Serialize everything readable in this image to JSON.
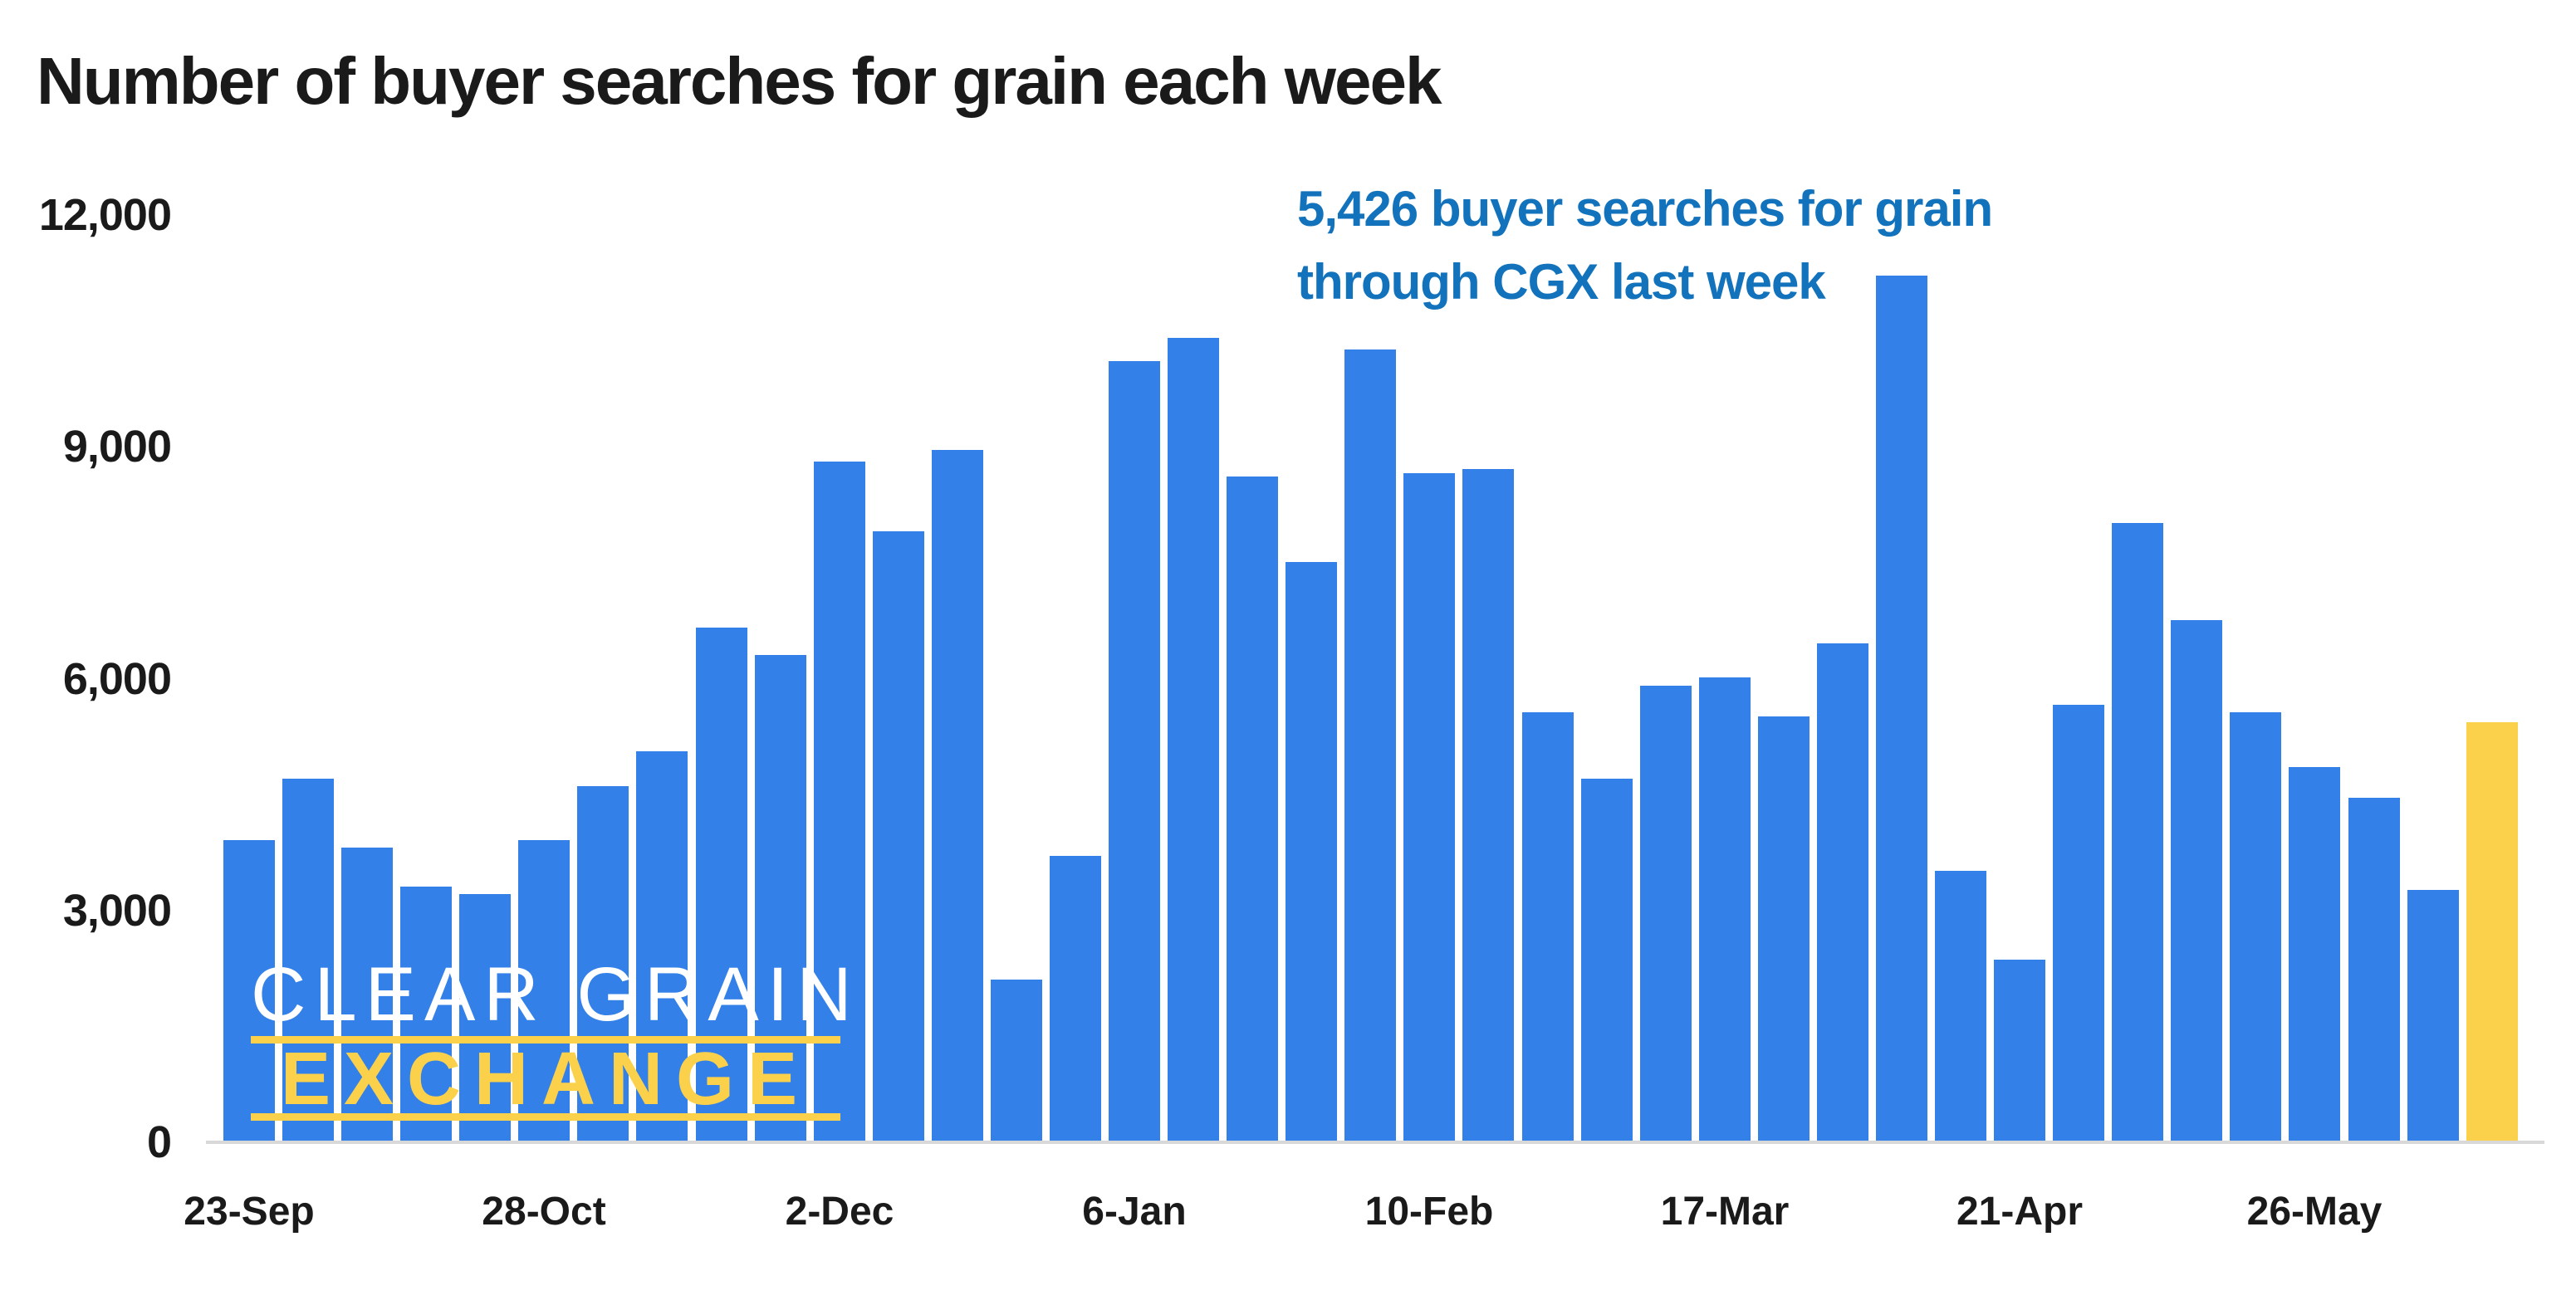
{
  "title": "Number of buyer searches for grain each week",
  "annotation": {
    "line1": "5,426 buyer searches for grain",
    "line2": "through CGX last week"
  },
  "logo": {
    "line1": "CLEAR GRAIN",
    "line2": "EXCHANGE"
  },
  "y_axis": {
    "labels": [
      "12,000",
      "9,000",
      "6,000",
      "3,000",
      "0"
    ]
  },
  "colors": {
    "bar_blue": "#3380E8",
    "highlight_yellow": "#FBD14B",
    "annotation_blue": "#1272BC",
    "text_dark": "#1a1a1a",
    "baseline_gray": "#d8d8d8"
  },
  "chart_data": {
    "type": "bar",
    "title": "Number of buyer searches for grain each week",
    "xlabel": "",
    "ylabel": "",
    "ylim": [
      0,
      12000
    ],
    "y_ticks": [
      0,
      3000,
      6000,
      9000,
      12000
    ],
    "y_tick_labels": [
      "0",
      "3,000",
      "6,000",
      "9,000",
      "12,000"
    ],
    "grid": false,
    "legend": false,
    "x_tick_labels": [
      {
        "index": 0,
        "label": "23-Sep"
      },
      {
        "index": 5,
        "label": "28-Oct"
      },
      {
        "index": 10,
        "label": "2-Dec"
      },
      {
        "index": 15,
        "label": "6-Jan"
      },
      {
        "index": 20,
        "label": "10-Feb"
      },
      {
        "index": 25,
        "label": "17-Mar"
      },
      {
        "index": 30,
        "label": "21-Apr"
      },
      {
        "index": 35,
        "label": "26-May"
      }
    ],
    "values": [
      3900,
      4700,
      3800,
      3300,
      3200,
      3900,
      4600,
      5050,
      6650,
      6300,
      8800,
      7900,
      8950,
      2100,
      3700,
      10100,
      10400,
      8600,
      7500,
      10250,
      8650,
      8700,
      5550,
      4700,
      5900,
      6000,
      5500,
      6450,
      11200,
      3500,
      2350,
      5650,
      8000,
      6750,
      5550,
      4850,
      4450,
      3250,
      5426
    ],
    "highlight_index": 38,
    "highlight_value": 5426,
    "series_name": "Buyer searches for grain",
    "annotation_text": "5,426 buyer searches for grain through CGX last week"
  }
}
